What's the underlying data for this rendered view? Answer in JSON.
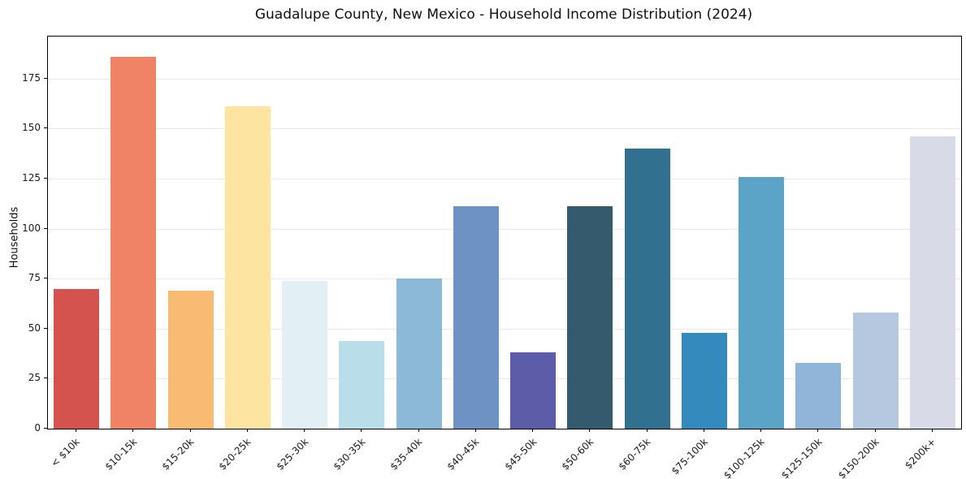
{
  "chart_data": {
    "type": "bar",
    "title": "Guadalupe County, New Mexico - Household Income Distribution (2024)",
    "ylabel": "Households",
    "xlabel": "",
    "categories": [
      "< $10k",
      "$10-15k",
      "$15-20k",
      "$20-25k",
      "$25-30k",
      "$30-35k",
      "$35-40k",
      "$40-45k",
      "$45-50k",
      "$50-60k",
      "$60-75k",
      "$75-100k",
      "$100-125k",
      "$125-150k",
      "$150-200k",
      "$200k+"
    ],
    "values": [
      70,
      186,
      69,
      161,
      74,
      44,
      75,
      111,
      38,
      111,
      140,
      48,
      126,
      33,
      58,
      146
    ],
    "colors": [
      "#d4534e",
      "#f08365",
      "#f9ba74",
      "#fde4a0",
      "#e2f0f6",
      "#b9dee9",
      "#8db9d9",
      "#6e92c4",
      "#5c5ca8",
      "#35596d",
      "#32708f",
      "#3489bd",
      "#5ba4c7",
      "#90b5d8",
      "#b6c8e0",
      "#d8dae7"
    ],
    "yticks": [
      0,
      25,
      50,
      75,
      100,
      125,
      150,
      175
    ],
    "ylim": [
      0,
      196
    ],
    "grid": "horizontal",
    "legend": "none",
    "bar_width_frac": 0.8
  }
}
